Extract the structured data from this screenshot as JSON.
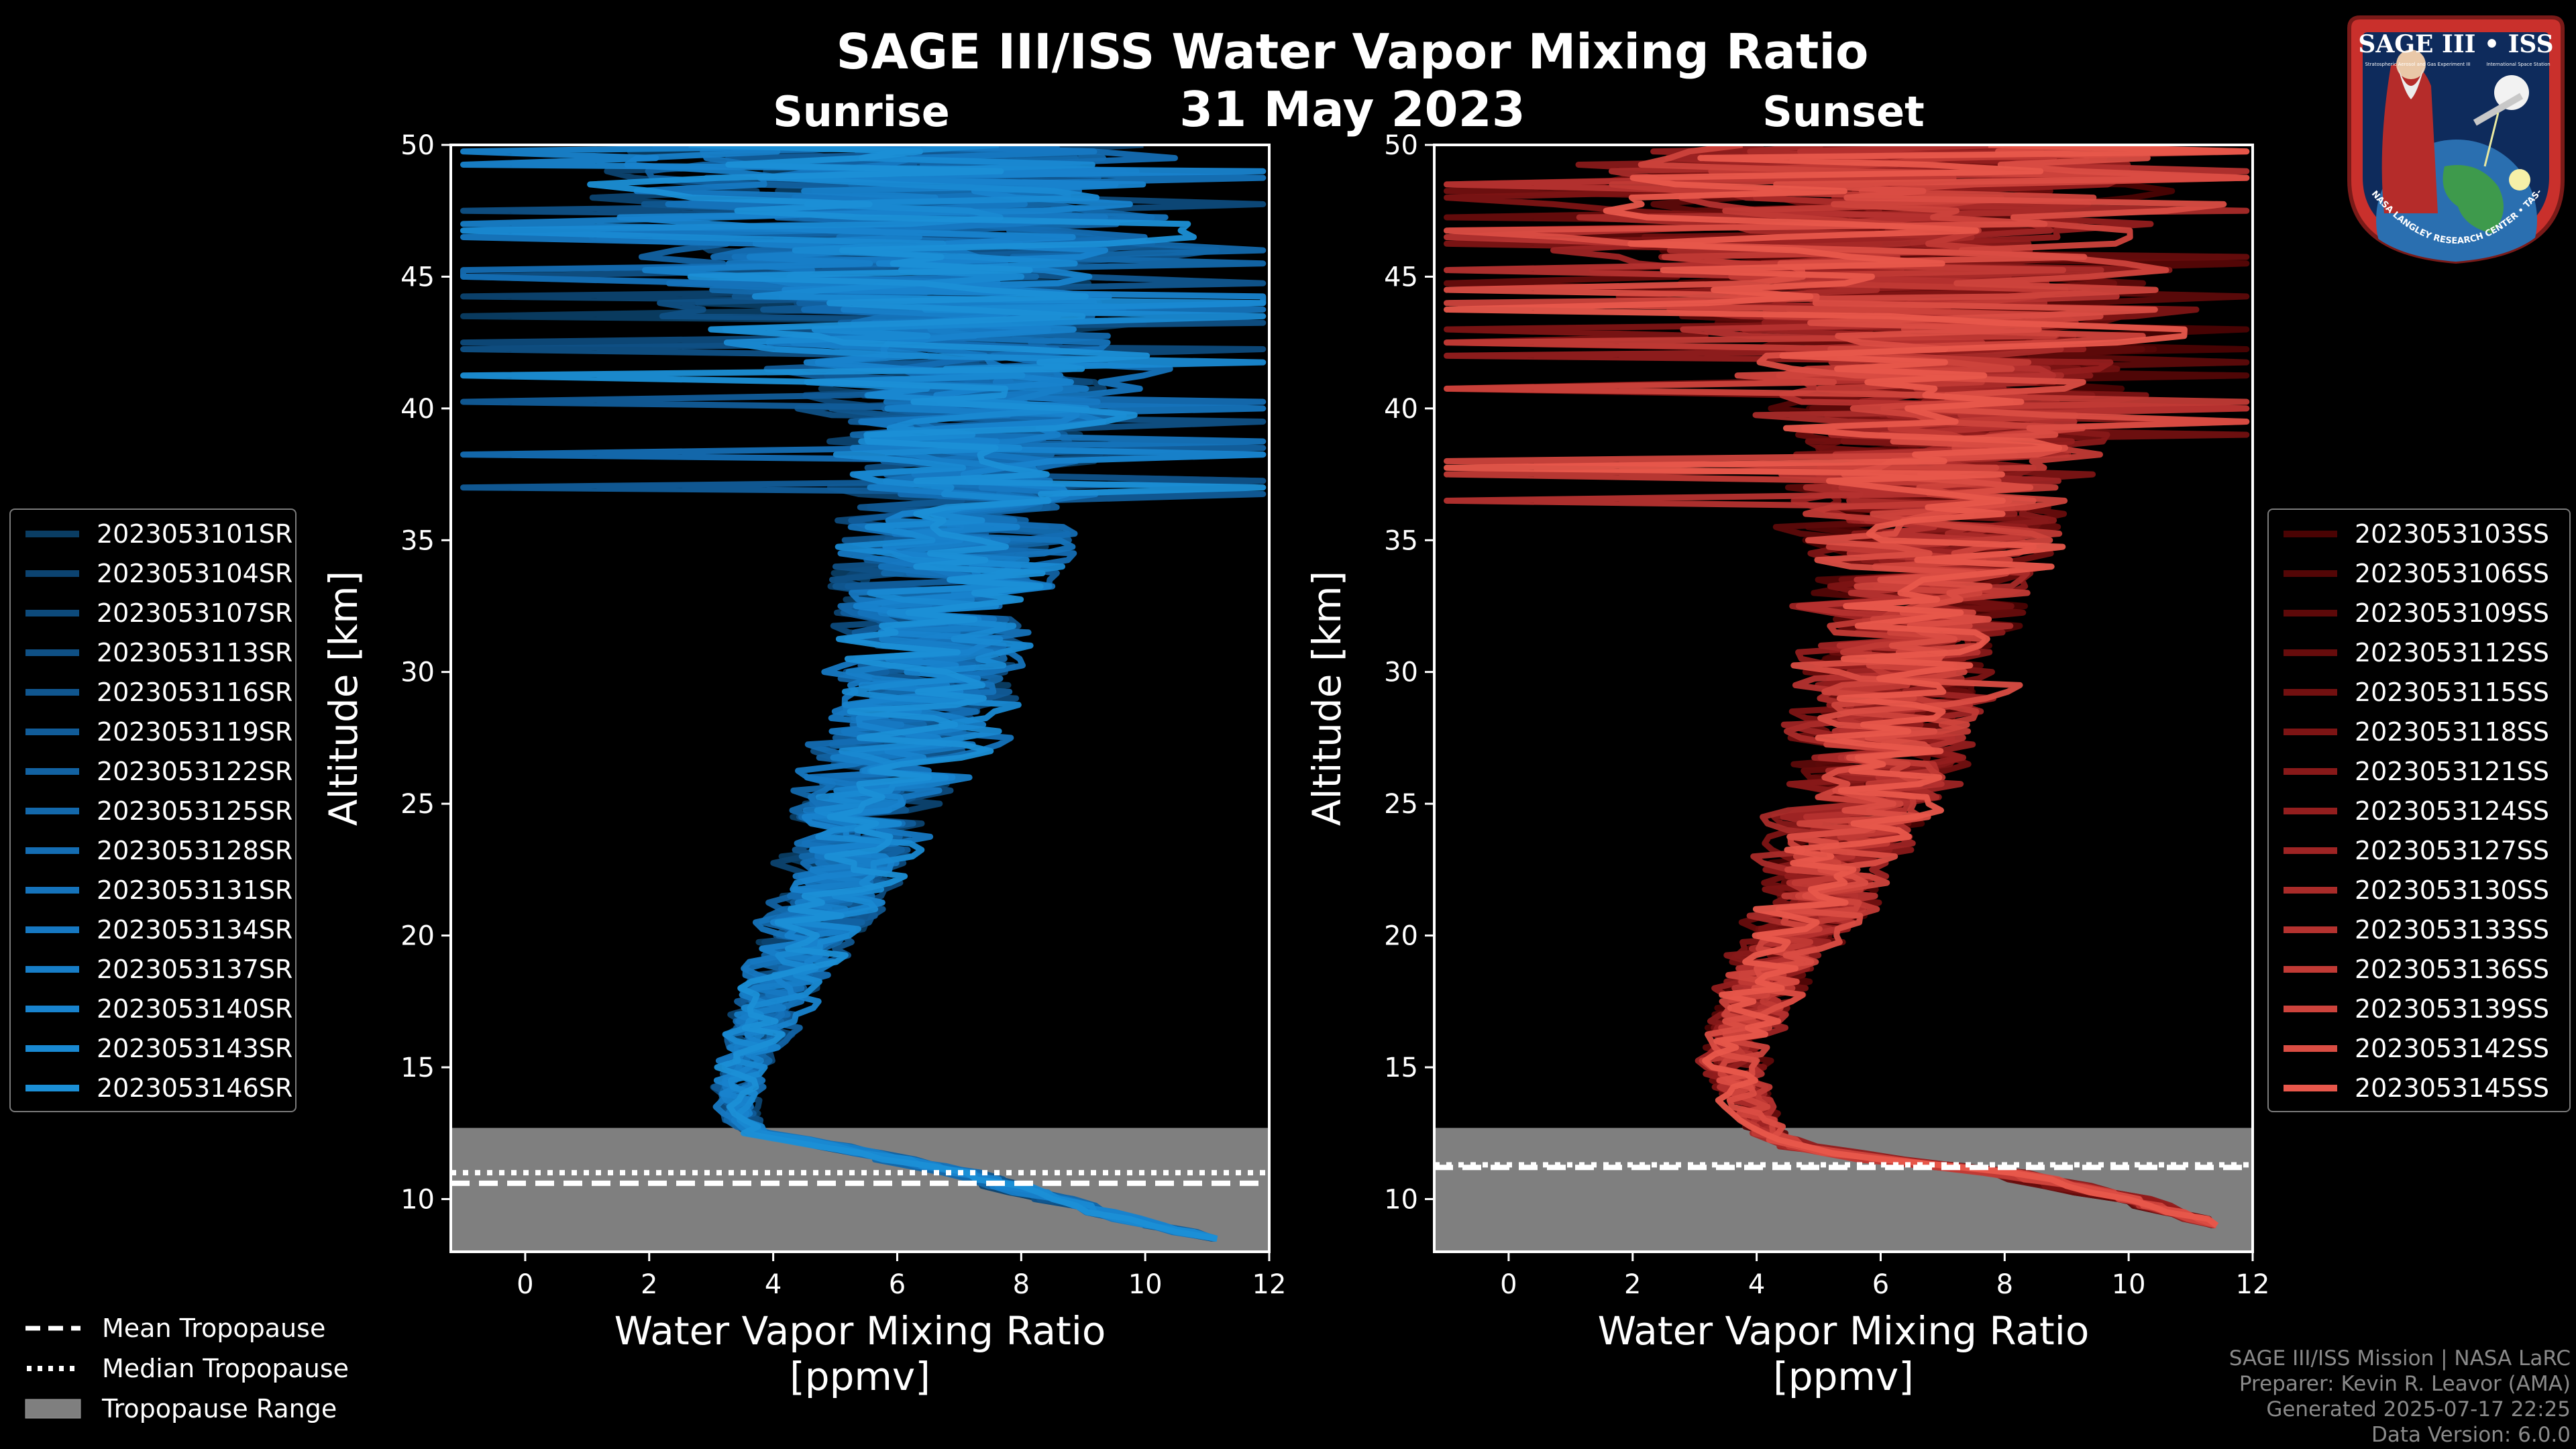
{
  "title": "SAGE III/ISS Water Vapor Mixing Ratio",
  "date": "31 May 2023",
  "legend_bottom": {
    "mean": "Mean Tropopause",
    "median": "Median Tropopause",
    "range": "Tropopause Range"
  },
  "credits": {
    "mission": "SAGE III/ISS Mission | NASA LaRC",
    "preparer": "Preparer: Kevin R. Leavor (AMA)",
    "generated": "Generated 2025-07-17 22:25",
    "version": "Data Version: 6.0.0"
  },
  "logo": {
    "text": "SAGE III • ISS",
    "ring_text": "BALL • NASA LANGLEY RESEARCH CENTER • TAS-I • ESA",
    "sub1": "Stratospheric Aerosol and Gas Experiment III",
    "sub2": "International Space Station"
  },
  "colors": {
    "background": "#000000",
    "range_fill": "#7f7f7f",
    "sunrise_dark": "#0a3d63",
    "sunrise_light": "#1b8fd6",
    "sunset_dark": "#4a0303",
    "sunset_light": "#e8574b"
  },
  "chart_data": [
    {
      "type": "line",
      "title": "Sunrise",
      "xlabel": "Water Vapor Mixing Ratio\n[ppmv]",
      "ylabel": "Altitude [km]",
      "xlim": [
        -1.2,
        12
      ],
      "ylim": [
        8,
        50
      ],
      "xticks": [
        0,
        2,
        4,
        6,
        8,
        10,
        12
      ],
      "yticks": [
        10,
        15,
        20,
        25,
        30,
        35,
        40,
        45,
        50
      ],
      "tropopause": {
        "mean": 10.6,
        "median": 11.0,
        "range": [
          8,
          12.7
        ]
      },
      "profile_shape": {
        "altitude": [
          8.5,
          10,
          11,
          12,
          12.5,
          13,
          14,
          15,
          16,
          17,
          18,
          19,
          20,
          21,
          22,
          23,
          24,
          25,
          26,
          27,
          28,
          29,
          30,
          31,
          32,
          33,
          34,
          35,
          36,
          37,
          38,
          39,
          40,
          41,
          42,
          43,
          44,
          45,
          46,
          47,
          48,
          49,
          50
        ],
        "center": [
          11.0,
          8.5,
          7.0,
          5.0,
          3.8,
          3.5,
          3.4,
          3.5,
          3.7,
          3.9,
          4.1,
          4.3,
          4.5,
          4.8,
          5.0,
          5.2,
          5.4,
          5.6,
          5.8,
          6.0,
          6.2,
          6.3,
          6.4,
          6.5,
          6.6,
          6.7,
          6.8,
          6.9,
          7.0,
          7.0,
          7.1,
          7.2,
          7.3,
          7.0,
          6.8,
          6.5,
          6.3,
          6.0,
          6.0,
          6.0,
          6.0,
          6.0,
          6.0
        ],
        "spread": [
          0.3,
          0.5,
          0.5,
          0.4,
          0.3,
          0.4,
          0.5,
          0.6,
          0.7,
          0.8,
          0.9,
          1.0,
          1.1,
          1.2,
          1.3,
          1.4,
          1.5,
          1.6,
          1.7,
          1.8,
          1.9,
          2.0,
          2.0,
          2.1,
          2.2,
          2.3,
          2.4,
          2.5,
          2.6,
          2.8,
          3.0,
          3.2,
          3.4,
          3.8,
          4.2,
          4.6,
          5.0,
          5.4,
          5.8,
          6.0,
          6.2,
          6.4,
          6.5
        ]
      },
      "series": [
        {
          "name": "2023053101SR",
          "color": "#0a3d63"
        },
        {
          "name": "2023053104SR",
          "color": "#0c4370"
        },
        {
          "name": "2023053107SR",
          "color": "#0d4a7b"
        },
        {
          "name": "2023053113SR",
          "color": "#0f5085"
        },
        {
          "name": "2023053116SR",
          "color": "#10568f"
        },
        {
          "name": "2023053119SR",
          "color": "#115c99"
        },
        {
          "name": "2023053122SR",
          "color": "#1262a2"
        },
        {
          "name": "2023053125SR",
          "color": "#1368ab"
        },
        {
          "name": "2023053128SR",
          "color": "#146db3"
        },
        {
          "name": "2023053131SR",
          "color": "#1573bb"
        },
        {
          "name": "2023053134SR",
          "color": "#1678c2"
        },
        {
          "name": "2023053137SR",
          "color": "#177ec8"
        },
        {
          "name": "2023053140SR",
          "color": "#1883ce"
        },
        {
          "name": "2023053143SR",
          "color": "#1989d2"
        },
        {
          "name": "2023053146SR",
          "color": "#1b8fd6"
        }
      ]
    },
    {
      "type": "line",
      "title": "Sunset",
      "xlabel": "Water Vapor Mixing Ratio\n[ppmv]",
      "ylabel": "Altitude [km]",
      "xlim": [
        -1.2,
        12
      ],
      "ylim": [
        8,
        50
      ],
      "xticks": [
        0,
        2,
        4,
        6,
        8,
        10,
        12
      ],
      "yticks": [
        10,
        15,
        20,
        25,
        30,
        35,
        40,
        45,
        50
      ],
      "tropopause": {
        "mean": 11.2,
        "median": 11.3,
        "range": [
          8,
          12.7
        ]
      },
      "profile_shape": {
        "altitude": [
          9,
          10,
          11,
          11.5,
          12,
          12.5,
          13,
          14,
          15,
          16,
          17,
          18,
          19,
          20,
          21,
          22,
          23,
          24,
          25,
          26,
          27,
          28,
          29,
          30,
          31,
          32,
          33,
          34,
          35,
          36,
          37,
          38,
          39,
          40,
          41,
          42,
          43,
          44,
          45,
          46,
          47,
          48,
          49,
          50
        ],
        "center": [
          11.5,
          10.0,
          8.0,
          6.0,
          4.6,
          4.2,
          4.0,
          3.8,
          3.6,
          3.7,
          3.9,
          4.1,
          4.3,
          4.6,
          4.9,
          5.1,
          5.3,
          5.5,
          5.7,
          5.9,
          6.0,
          6.1,
          6.2,
          6.3,
          6.4,
          6.5,
          6.6,
          6.7,
          6.8,
          6.9,
          7.0,
          7.0,
          7.0,
          7.0,
          6.9,
          6.8,
          6.6,
          6.4,
          6.2,
          6.0,
          6.0,
          6.0,
          6.0,
          6.0
        ],
        "spread": [
          0.3,
          0.5,
          0.5,
          0.5,
          0.4,
          0.4,
          0.5,
          0.6,
          0.7,
          0.8,
          0.9,
          1.0,
          1.1,
          1.2,
          1.3,
          1.4,
          1.5,
          1.6,
          1.7,
          1.8,
          1.9,
          2.0,
          2.1,
          2.2,
          2.3,
          2.4,
          2.5,
          2.6,
          2.8,
          3.0,
          3.2,
          3.4,
          3.6,
          3.9,
          4.2,
          4.6,
          5.0,
          5.4,
          5.8,
          6.0,
          6.2,
          6.4,
          6.5,
          6.6
        ]
      },
      "series": [
        {
          "name": "2023053103SS",
          "color": "#4a0303"
        },
        {
          "name": "2023053106SS",
          "color": "#530606"
        },
        {
          "name": "2023053109SS",
          "color": "#5d0909"
        },
        {
          "name": "2023053112SS",
          "color": "#670c0c"
        },
        {
          "name": "2023053115SS",
          "color": "#721010"
        },
        {
          "name": "2023053118SS",
          "color": "#7d1414"
        },
        {
          "name": "2023053121SS",
          "color": "#881919"
        },
        {
          "name": "2023053124SS",
          "color": "#931e1e"
        },
        {
          "name": "2023053127SS",
          "color": "#9e2424"
        },
        {
          "name": "2023053130SS",
          "color": "#a92b29"
        },
        {
          "name": "2023053133SS",
          "color": "#b5322f"
        },
        {
          "name": "2023053136SS",
          "color": "#c13a35"
        },
        {
          "name": "2023053139SS",
          "color": "#cd433c"
        },
        {
          "name": "2023053142SS",
          "color": "#da4d43"
        },
        {
          "name": "2023053145SS",
          "color": "#e8574b"
        }
      ]
    }
  ]
}
